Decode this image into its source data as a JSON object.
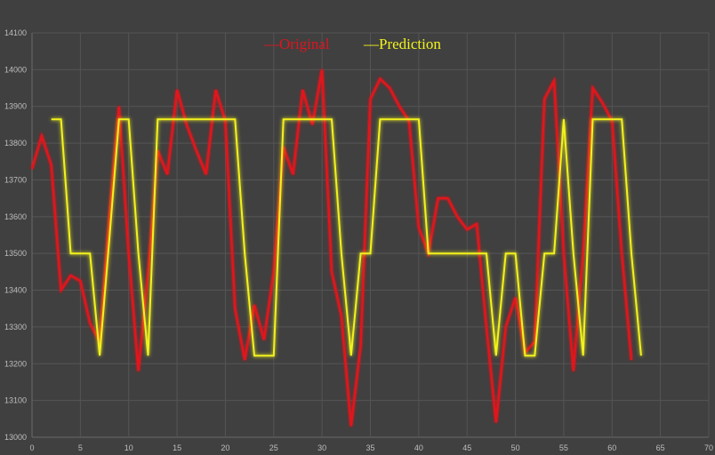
{
  "chart_data": {
    "type": "line",
    "title": "",
    "xlabel": "",
    "ylabel": "",
    "xlim": [
      0,
      70
    ],
    "ylim": [
      13000,
      14100
    ],
    "xticks": [
      "0",
      "5",
      "10",
      "15",
      "20",
      "25",
      "30",
      "35",
      "40",
      "45",
      "50",
      "55",
      "60",
      "65",
      "70"
    ],
    "yticks": [
      "13000",
      "13100",
      "13200",
      "13300",
      "13400",
      "13500",
      "13600",
      "13700",
      "13800",
      "13900",
      "14000",
      "14100"
    ],
    "grid": true,
    "legend_position": "top-center",
    "series": [
      {
        "name": "Original",
        "legend_label": "—Original",
        "color": "#e0141e",
        "x_start": 0,
        "values": [
          13730,
          13820,
          13740,
          13400,
          13440,
          13425,
          13310,
          13260,
          13600,
          13900,
          13500,
          13180,
          13450,
          13780,
          13715,
          13945,
          13850,
          13780,
          13715,
          13945,
          13860,
          13350,
          13210,
          13360,
          13265,
          13450,
          13790,
          13715,
          13945,
          13850,
          14000,
          13450,
          13330,
          13030,
          13250,
          13920,
          13975,
          13950,
          13900,
          13860,
          13570,
          13500,
          13650,
          13650,
          13600,
          13565,
          13580,
          13300,
          13040,
          13300,
          13380,
          13230,
          13260,
          13920,
          13970,
          13500,
          13180,
          13500,
          13950,
          13910,
          13860,
          13500,
          13210
        ]
      },
      {
        "name": "Prediction",
        "legend_label": "—Prediction",
        "color": "#f2f21e",
        "x_start": 2,
        "values": [
          13865,
          13865,
          13500,
          13500,
          13500,
          13222,
          13540,
          13865,
          13865,
          13500,
          13222,
          13865,
          13865,
          13865,
          13865,
          13865,
          13865,
          13865,
          13865,
          13865,
          13500,
          13222,
          13222,
          13222,
          13865,
          13865,
          13865,
          13865,
          13865,
          13865,
          13500,
          13222,
          13500,
          13500,
          13865,
          13865,
          13865,
          13865,
          13865,
          13500,
          13500,
          13500,
          13500,
          13500,
          13500,
          13500,
          13222,
          13500,
          13500,
          13222,
          13222,
          13500,
          13500,
          13865,
          13500,
          13222,
          13865,
          13865,
          13865,
          13865,
          13500,
          13222
        ]
      }
    ]
  }
}
